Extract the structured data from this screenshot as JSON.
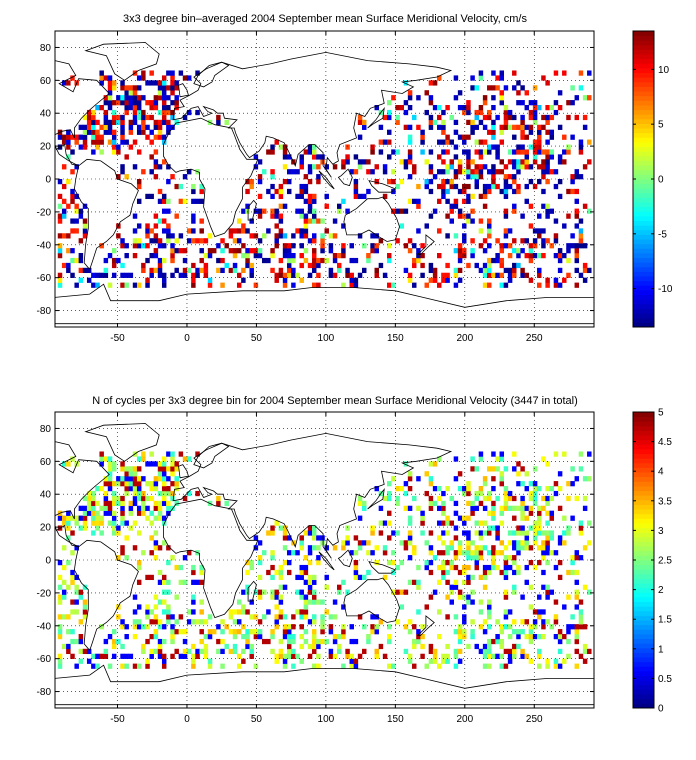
{
  "charts": [
    {
      "title": "3x3 degree bin–averaged 2004 September mean Surface Meridional Velocity, cm/s",
      "colorbar": {
        "min": -13.5,
        "max": 13.5,
        "ticks": [
          -10,
          -5,
          0,
          5,
          10
        ]
      },
      "variable": "velocity"
    },
    {
      "title": "N of cycles per 3x3 degree bin for 2004 September mean Surface Meridional Velocity (3447 in total)",
      "colorbar": {
        "min": 0,
        "max": 5,
        "ticks": [
          0,
          0.5,
          1,
          1.5,
          2,
          2.5,
          3,
          3.5,
          4,
          4.5,
          5
        ]
      },
      "variable": "count"
    }
  ],
  "chart_data": [
    {
      "type": "heatmap",
      "title": "3x3 degree bin–averaged 2004 September mean Surface Meridional Velocity, cm/s",
      "xlim": [
        -95,
        293
      ],
      "ylim": [
        -90,
        90
      ],
      "xticks": [
        -50,
        0,
        50,
        100,
        150,
        200,
        250
      ],
      "yticks": [
        -80,
        -60,
        -40,
        -20,
        0,
        20,
        40,
        60,
        80
      ],
      "grid": true,
      "colormap": "jet",
      "colorbar_range": [
        -13.5,
        13.5
      ],
      "colorbar_ticks": [
        -10,
        -5,
        0,
        5,
        10
      ],
      "bin_size_deg": 3
    },
    {
      "type": "heatmap",
      "title": "N of cycles per 3x3 degree bin for 2004 September mean Surface Meridional Velocity (3447 in total)",
      "xlim": [
        -95,
        293
      ],
      "ylim": [
        -90,
        90
      ],
      "xticks": [
        -50,
        0,
        50,
        100,
        150,
        200,
        250
      ],
      "yticks": [
        -80,
        -60,
        -40,
        -20,
        0,
        20,
        40,
        60,
        80
      ],
      "grid": true,
      "colormap": "jet",
      "colorbar_range": [
        0,
        5
      ],
      "colorbar_ticks": [
        0,
        0.5,
        1,
        1.5,
        2,
        2.5,
        3,
        3.5,
        4,
        4.5,
        5
      ],
      "total_cycles": 3447,
      "bin_size_deg": 3
    }
  ]
}
